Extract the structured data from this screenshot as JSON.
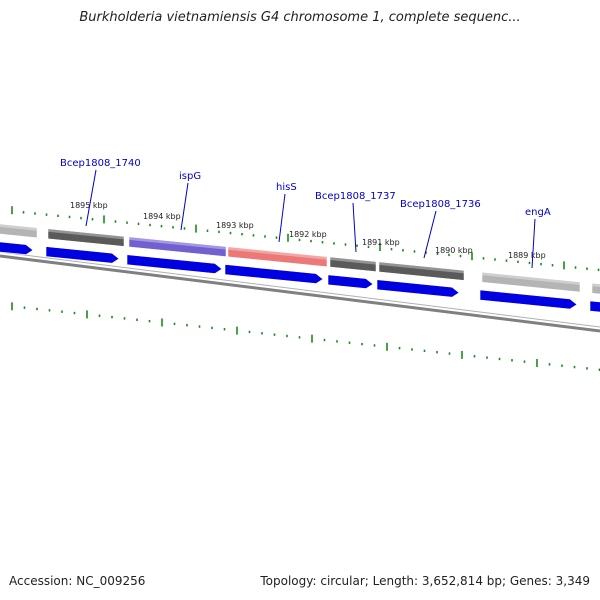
{
  "title": "Burkholderia vietnamiensis G4 chromosome 1, complete sequenc...",
  "footer": {
    "accession": "Accession: NC_009256",
    "summary": "Topology: circular; Length: 3,652,814 bp; Genes: 3,349"
  },
  "colors": {
    "gene_label": "#0000cc",
    "cds_arrow": "#0000e0",
    "tick": "#1a8a1a",
    "backbone": "#808080",
    "gene_dark": "#5a5a5a",
    "gene_light": "#b4b4b4",
    "gene_purple": "#7060d0",
    "gene_red": "#ec7878"
  },
  "kbp_labels": [
    "1895 kbp",
    "1894 kbp",
    "1893 kbp",
    "1892 kbp",
    "1891 kbp",
    "1890 kbp",
    "1889 kbp"
  ],
  "genes": [
    {
      "name": "",
      "color": "light"
    },
    {
      "name": "Bcep1808_1740",
      "color": "dark"
    },
    {
      "name": "ispG",
      "color": "purple"
    },
    {
      "name": "hisS",
      "color": "red"
    },
    {
      "name": "Bcep1808_1737",
      "color": "dark"
    },
    {
      "name": "Bcep1808_1736",
      "color": "dark"
    },
    {
      "name": "engA",
      "color": "light"
    },
    {
      "name": "",
      "color": "light"
    }
  ]
}
